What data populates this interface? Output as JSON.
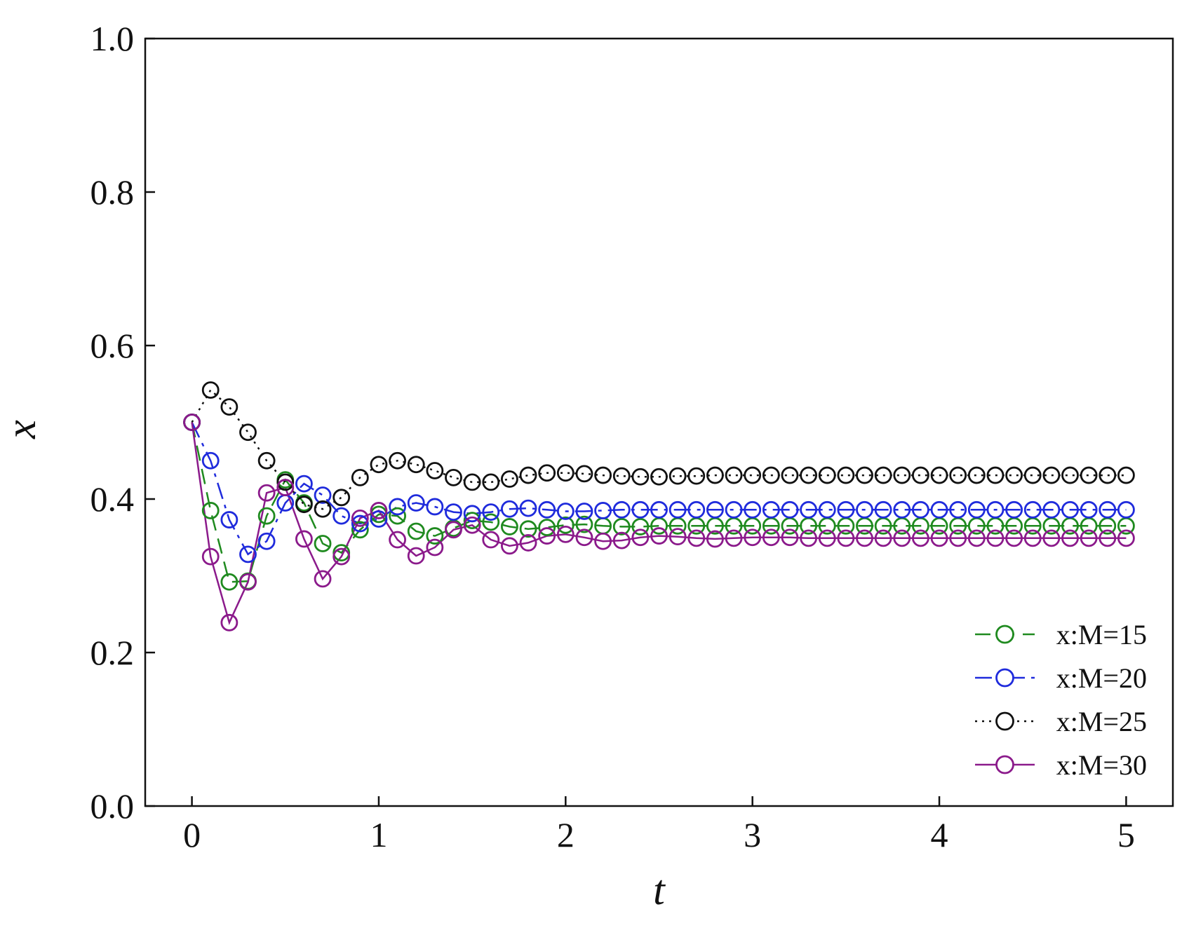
{
  "chart_data": {
    "type": "line",
    "title": "",
    "xlabel": "t",
    "ylabel": "x",
    "xlim": [
      -0.25,
      5.25
    ],
    "ylim": [
      0.0,
      1.0
    ],
    "xticks": [
      0,
      1,
      2,
      3,
      4,
      5
    ],
    "xtick_labels": [
      "0",
      "1",
      "2",
      "3",
      "4",
      "5"
    ],
    "yticks": [
      0.0,
      0.2,
      0.4,
      0.6,
      0.8,
      1.0
    ],
    "ytick_labels": [
      "0.0",
      "0.2",
      "0.4",
      "0.6",
      "0.8",
      "1.0"
    ],
    "grid": false,
    "legend_position": "bottom-right",
    "marker": "open-circle",
    "x": [
      0,
      0.1,
      0.2,
      0.3,
      0.4,
      0.5,
      0.6,
      0.7,
      0.8,
      0.9,
      1.0,
      1.1,
      1.2,
      1.3,
      1.4,
      1.5,
      1.6,
      1.7,
      1.8,
      1.9,
      2.0,
      2.1,
      2.2,
      2.3,
      2.4,
      2.5,
      2.6,
      2.7,
      2.8,
      2.9,
      3.0,
      3.1,
      3.2,
      3.3,
      3.4,
      3.5,
      3.6,
      3.7,
      3.8,
      3.9,
      4.0,
      4.1,
      4.2,
      4.3,
      4.4,
      4.5,
      4.6,
      4.7,
      4.8,
      4.9,
      5.0
    ],
    "series": [
      {
        "name": "x:M=15",
        "color": "#1f8a1f",
        "dash": "dashed",
        "values": [
          0.5,
          0.385,
          0.292,
          0.293,
          0.378,
          0.425,
          0.395,
          0.342,
          0.33,
          0.36,
          0.38,
          0.378,
          0.358,
          0.352,
          0.362,
          0.372,
          0.37,
          0.364,
          0.361,
          0.363,
          0.366,
          0.367,
          0.365,
          0.364,
          0.364,
          0.365,
          0.365,
          0.365,
          0.365,
          0.365,
          0.365,
          0.365,
          0.365,
          0.365,
          0.365,
          0.365,
          0.365,
          0.365,
          0.365,
          0.365,
          0.365,
          0.365,
          0.365,
          0.365,
          0.365,
          0.365,
          0.365,
          0.365,
          0.365,
          0.365,
          0.365
        ]
      },
      {
        "name": "x:M=20",
        "color": "#1f2bdc",
        "dash": "dashdot",
        "values": [
          0.5,
          0.45,
          0.373,
          0.328,
          0.345,
          0.395,
          0.42,
          0.405,
          0.378,
          0.368,
          0.374,
          0.39,
          0.395,
          0.39,
          0.383,
          0.381,
          0.383,
          0.387,
          0.388,
          0.386,
          0.384,
          0.384,
          0.385,
          0.386,
          0.386,
          0.386,
          0.386,
          0.386,
          0.386,
          0.386,
          0.386,
          0.386,
          0.386,
          0.386,
          0.386,
          0.386,
          0.386,
          0.386,
          0.386,
          0.386,
          0.386,
          0.386,
          0.386,
          0.386,
          0.386,
          0.386,
          0.386,
          0.386,
          0.386,
          0.386,
          0.386
        ]
      },
      {
        "name": "x:M=25",
        "color": "#111111",
        "dash": "dotted",
        "values": [
          0.5,
          0.542,
          0.52,
          0.487,
          0.45,
          0.422,
          0.393,
          0.387,
          0.402,
          0.428,
          0.445,
          0.45,
          0.445,
          0.437,
          0.428,
          0.422,
          0.422,
          0.426,
          0.431,
          0.434,
          0.434,
          0.433,
          0.431,
          0.43,
          0.429,
          0.429,
          0.43,
          0.43,
          0.431,
          0.431,
          0.431,
          0.431,
          0.431,
          0.431,
          0.431,
          0.431,
          0.431,
          0.431,
          0.431,
          0.431,
          0.431,
          0.431,
          0.431,
          0.431,
          0.431,
          0.431,
          0.431,
          0.431,
          0.431,
          0.431,
          0.431
        ]
      },
      {
        "name": "x:M=30",
        "color": "#8b1a8b",
        "dash": "solid",
        "values": [
          0.5,
          0.325,
          0.239,
          0.292,
          0.408,
          0.415,
          0.348,
          0.296,
          0.325,
          0.375,
          0.385,
          0.347,
          0.326,
          0.337,
          0.36,
          0.366,
          0.347,
          0.339,
          0.343,
          0.352,
          0.354,
          0.35,
          0.345,
          0.346,
          0.35,
          0.352,
          0.351,
          0.349,
          0.348,
          0.349,
          0.35,
          0.35,
          0.35,
          0.349,
          0.349,
          0.349,
          0.349,
          0.349,
          0.349,
          0.349,
          0.349,
          0.349,
          0.349,
          0.349,
          0.349,
          0.349,
          0.349,
          0.349,
          0.349,
          0.349,
          0.349
        ]
      }
    ]
  }
}
